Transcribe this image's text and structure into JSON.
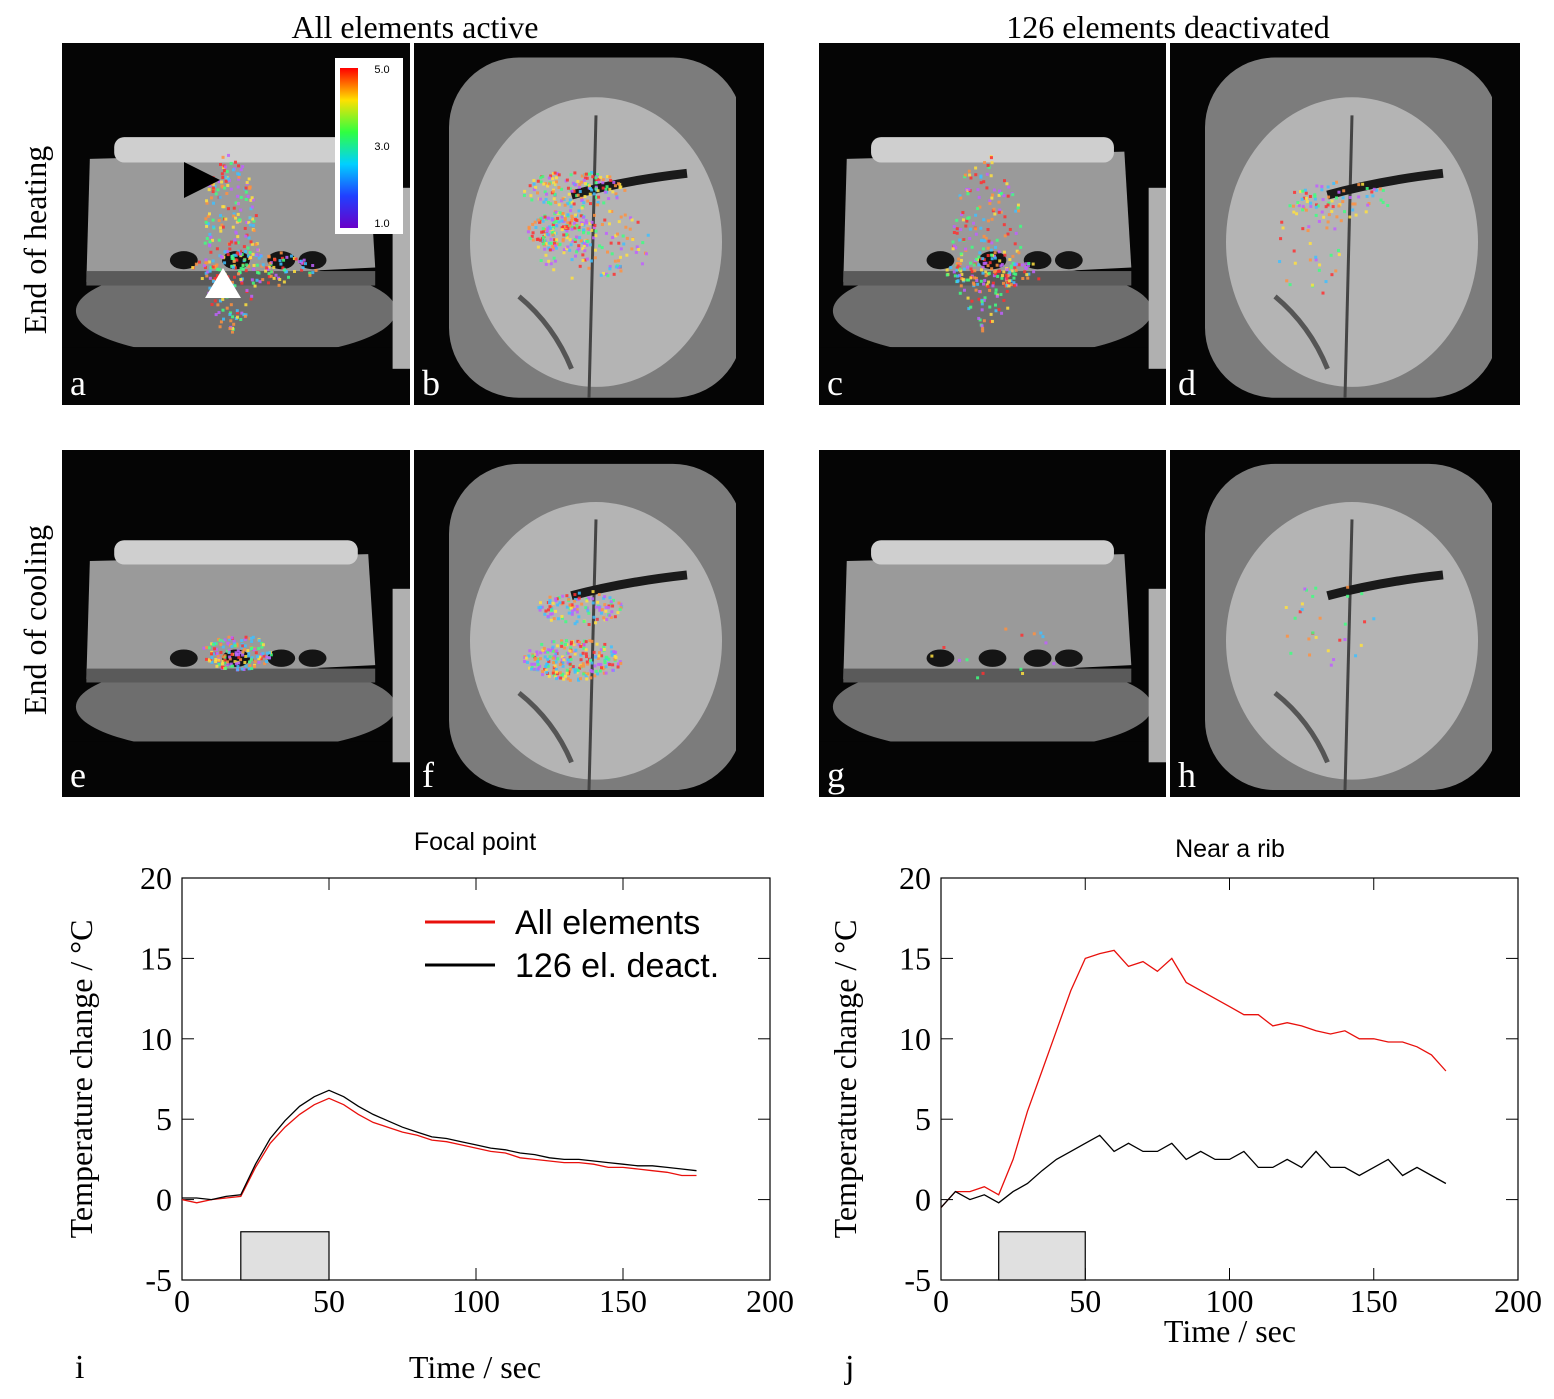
{
  "header": {
    "left": "All elements active",
    "right": "126 elements deactivated"
  },
  "row_labels": [
    "End of heating",
    "End of cooling"
  ],
  "panels": [
    {
      "label": "a"
    },
    {
      "label": "b"
    },
    {
      "label": "c"
    },
    {
      "label": "d"
    },
    {
      "label": "e"
    },
    {
      "label": "f"
    },
    {
      "label": "g"
    },
    {
      "label": "h"
    }
  ],
  "colorbar": {
    "labels": [
      "5.0",
      "3.0",
      "1.0"
    ]
  },
  "chart_data": [
    {
      "type": "line",
      "title": "Focal point",
      "panel_label": "i",
      "x_label": "Time / sec",
      "y_label": "Temperature change / °C",
      "x": [
        0,
        5,
        10,
        15,
        20,
        25,
        30,
        35,
        40,
        45,
        50,
        55,
        60,
        65,
        70,
        75,
        80,
        85,
        90,
        95,
        100,
        105,
        110,
        115,
        120,
        125,
        130,
        135,
        140,
        145,
        150,
        155,
        160,
        165,
        170,
        175
      ],
      "series": [
        {
          "name": "All elements",
          "color": "#e8100c",
          "values": [
            0,
            -0.2,
            0,
            0.1,
            0.2,
            2,
            3.5,
            4.5,
            5.3,
            5.9,
            6.3,
            5.9,
            5.3,
            4.8,
            4.5,
            4.2,
            4,
            3.7,
            3.6,
            3.4,
            3.2,
            3,
            2.9,
            2.6,
            2.5,
            2.4,
            2.3,
            2.3,
            2.2,
            2,
            2,
            1.9,
            1.8,
            1.7,
            1.5,
            1.5
          ]
        },
        {
          "name": "126 el. deact.",
          "color": "#000000",
          "values": [
            0.1,
            0.1,
            0,
            0.2,
            0.3,
            2.2,
            3.8,
            4.9,
            5.8,
            6.4,
            6.8,
            6.4,
            5.8,
            5.3,
            4.9,
            4.5,
            4.2,
            3.9,
            3.8,
            3.6,
            3.4,
            3.2,
            3.1,
            2.9,
            2.8,
            2.6,
            2.5,
            2.5,
            2.4,
            2.3,
            2.2,
            2.1,
            2.1,
            2,
            1.9,
            1.8
          ]
        }
      ],
      "xlim": [
        0,
        200
      ],
      "ylim": [
        -5,
        20
      ],
      "xticks": [
        0,
        50,
        100,
        150,
        200
      ],
      "yticks": [
        -5,
        0,
        5,
        10,
        15,
        20
      ],
      "shaded_box": {
        "x": [
          20,
          50
        ],
        "y": [
          -5,
          -2
        ]
      },
      "legend_position": "upper right"
    },
    {
      "type": "line",
      "title": "Near a rib",
      "panel_label": "j",
      "x_label": "Time / sec",
      "y_label": "Temperature change / °C",
      "x": [
        0,
        5,
        10,
        15,
        20,
        25,
        30,
        35,
        40,
        45,
        50,
        55,
        60,
        65,
        70,
        75,
        80,
        85,
        90,
        95,
        100,
        105,
        110,
        115,
        120,
        125,
        130,
        135,
        140,
        145,
        150,
        155,
        160,
        165,
        170,
        175
      ],
      "series": [
        {
          "name": "All elements",
          "color": "#e8100c",
          "values": [
            -0.5,
            0.5,
            0.5,
            0.8,
            0.3,
            2.5,
            5.5,
            8,
            10.5,
            13,
            15,
            15.3,
            15.5,
            14.5,
            14.8,
            14.2,
            15,
            13.5,
            13,
            12.5,
            12,
            11.5,
            11.5,
            10.8,
            11,
            10.8,
            10.5,
            10.3,
            10.5,
            10,
            10,
            9.8,
            9.8,
            9.5,
            9,
            8
          ]
        },
        {
          "name": "126 el. deact.",
          "color": "#000000",
          "values": [
            -0.5,
            0.5,
            0,
            0.3,
            -0.2,
            0.5,
            1,
            1.8,
            2.5,
            3,
            3.5,
            4,
            3,
            3.5,
            3,
            3,
            3.5,
            2.5,
            3,
            2.5,
            2.5,
            3,
            2,
            2,
            2.5,
            2,
            3,
            2,
            2,
            1.5,
            2,
            2.5,
            1.5,
            2,
            1.5,
            1
          ]
        }
      ],
      "xlim": [
        0,
        200
      ],
      "ylim": [
        -5,
        20
      ],
      "xticks": [
        0,
        50,
        100,
        150,
        200
      ],
      "yticks": [
        -5,
        0,
        5,
        10,
        15,
        20
      ],
      "shaded_box": {
        "x": [
          20,
          50
        ],
        "y": [
          -5,
          -2
        ]
      }
    }
  ]
}
